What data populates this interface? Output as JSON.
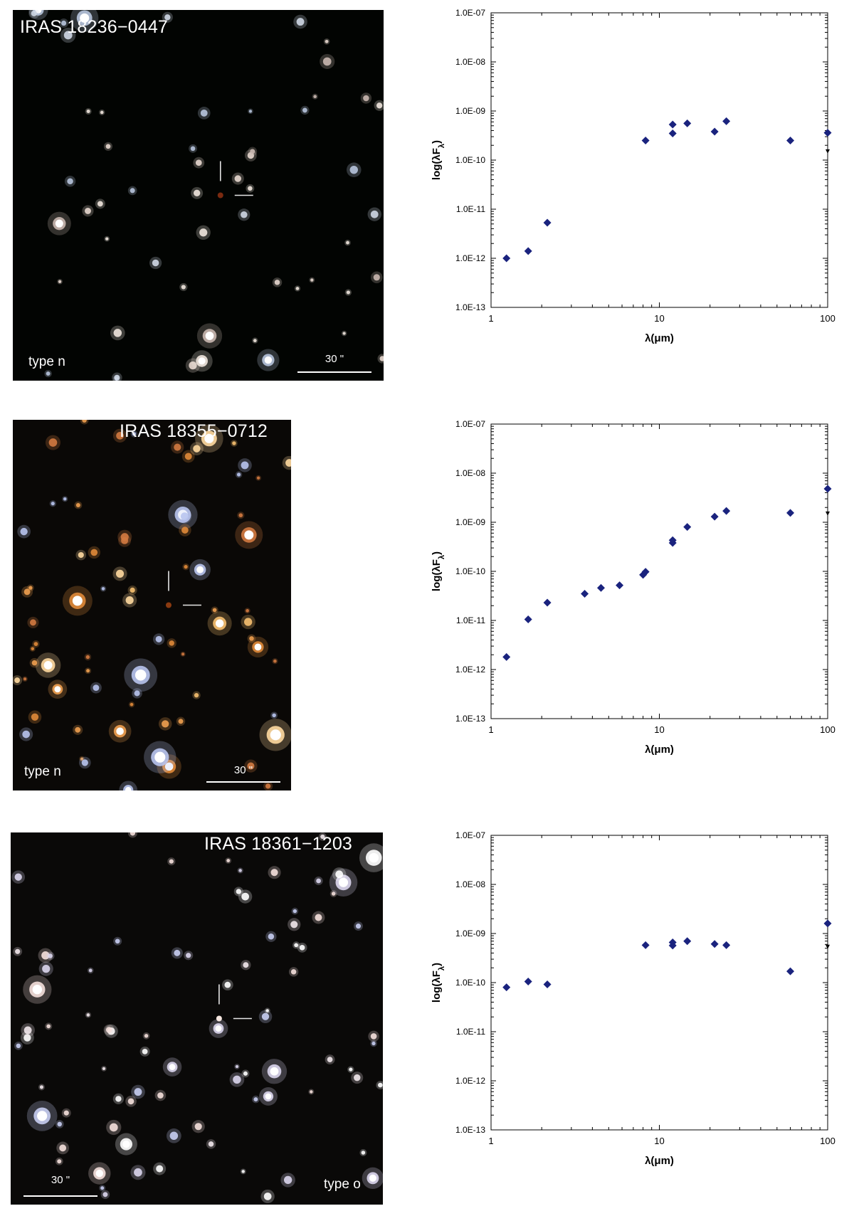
{
  "images": [
    {
      "title": "IRAS 18236−0447",
      "type_label": "type n",
      "scale_label": "30 \"",
      "colors": {
        "background": "#020402",
        "target": "#7a2a10"
      }
    },
    {
      "title": "IRAS 18355−0712",
      "type_label": "type n",
      "scale_label": "30 \"",
      "colors": {
        "background": "#0a0806",
        "target": "#8a3a10"
      }
    },
    {
      "title": "IRAS 18361−1203",
      "type_label": "type o",
      "scale_label": "30 \"",
      "colors": {
        "background": "#0a0908",
        "target": "#f5e6e0"
      }
    }
  ],
  "chart_data": [
    {
      "type": "scatter",
      "title": "",
      "xlabel": "λ(μm)",
      "ylabel": "log(λF",
      "ylabel_subscript": "λ",
      "ylabel_suffix": ")",
      "x_scale": "log",
      "y_scale": "log",
      "xlim": [
        1,
        100
      ],
      "ylim": [
        1e-13,
        1e-07
      ],
      "x_ticks": [
        "1",
        "10",
        "100"
      ],
      "y_ticks": [
        "1.0E-13",
        "1.0E-12",
        "1.0E-11",
        "1.0E-10",
        "1.0E-09",
        "1.0E-08",
        "1.0E-07"
      ],
      "marker_color": "#1a237e",
      "series": [
        {
          "x": [
            1.235,
            1.662,
            2.159,
            8.28,
            12,
            12,
            14.65,
            21.3,
            25,
            60,
            100
          ],
          "y": [
            1e-12,
            1.4e-12,
            5.3e-12,
            2.5e-10,
            3.5e-10,
            5.3e-10,
            5.6e-10,
            3.8e-10,
            6.2e-10,
            2.5e-10,
            3.6e-10
          ]
        }
      ],
      "upper_limits": [
        {
          "x": 100,
          "y": 3.6e-10,
          "y_to": 1.4e-10
        }
      ]
    },
    {
      "type": "scatter",
      "title": "",
      "xlabel": "λ(μm)",
      "ylabel": "log(λF",
      "ylabel_subscript": "λ",
      "ylabel_suffix": ")",
      "x_scale": "log",
      "y_scale": "log",
      "xlim": [
        1,
        100
      ],
      "ylim": [
        1e-13,
        1e-07
      ],
      "x_ticks": [
        "1",
        "10",
        "100"
      ],
      "y_ticks": [
        "1.0E-13",
        "1.0E-12",
        "1.0E-11",
        "1.0E-10",
        "1.0E-09",
        "1.0E-08",
        "1.0E-07"
      ],
      "marker_color": "#1a237e",
      "series": [
        {
          "x": [
            1.235,
            1.662,
            2.159,
            3.6,
            4.5,
            5.8,
            8.0,
            8.28,
            12,
            12,
            14.65,
            21.3,
            25,
            60,
            100
          ],
          "y": [
            1.8e-12,
            1.05e-11,
            2.3e-11,
            3.5e-11,
            4.6e-11,
            5.2e-11,
            8.5e-11,
            9.8e-11,
            3.8e-10,
            4.3e-10,
            8e-10,
            1.3e-09,
            1.7e-09,
            1.55e-09,
            4.8e-09
          ]
        }
      ],
      "upper_limits": [
        {
          "x": 100,
          "y": 4.8e-09,
          "y_to": 1.4e-09
        }
      ]
    },
    {
      "type": "scatter",
      "title": "",
      "xlabel": "λ(μm)",
      "ylabel": "log(λF",
      "ylabel_subscript": "λ",
      "ylabel_suffix": ")",
      "x_scale": "log",
      "y_scale": "log",
      "xlim": [
        1,
        100
      ],
      "ylim": [
        1e-13,
        1e-07
      ],
      "x_ticks": [
        "1",
        "10",
        "100"
      ],
      "y_ticks": [
        "1.0E-13",
        "1.0E-12",
        "1.0E-11",
        "1.0E-10",
        "1.0E-09",
        "1.0E-08",
        "1.0E-07"
      ],
      "marker_color": "#1a237e",
      "series": [
        {
          "x": [
            1.235,
            1.662,
            2.159,
            8.28,
            12,
            12,
            14.65,
            21.3,
            25,
            60,
            100
          ],
          "y": [
            8e-11,
            1.05e-10,
            9.2e-11,
            5.8e-10,
            5.7e-10,
            6.6e-10,
            7e-10,
            6.1e-10,
            5.8e-10,
            1.7e-10,
            1.6e-09
          ]
        }
      ],
      "upper_limits": [
        {
          "x": 100,
          "y": 1.6e-09,
          "y_to": 5e-10
        }
      ]
    }
  ]
}
